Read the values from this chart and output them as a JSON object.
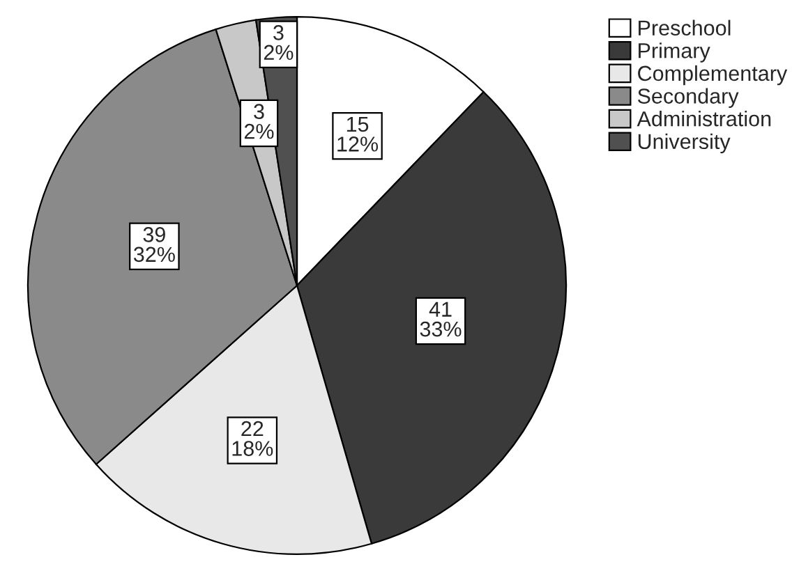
{
  "chart_data": {
    "type": "pie",
    "categories": [
      "Preschool",
      "Primary",
      "Complementary",
      "Secondary",
      "Administration",
      "University"
    ],
    "values": [
      15,
      41,
      22,
      39,
      3,
      3
    ],
    "colors": [
      "#ffffff",
      "#3a3a3a",
      "#e8e8e8",
      "#8a8a8a",
      "#c8c8c8",
      "#505050"
    ],
    "value_labels": [
      "15\n12%",
      "41\n33%",
      "22\n18%",
      "39\n32%",
      "3\n2%",
      "3\n2%"
    ],
    "legend": "top right"
  }
}
